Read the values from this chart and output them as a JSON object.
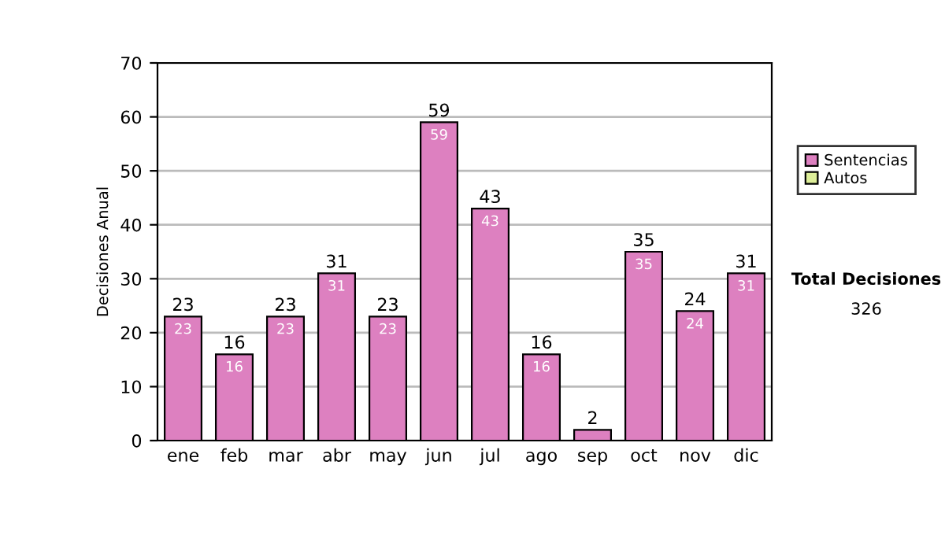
{
  "chart_data": {
    "type": "bar",
    "stacked": true,
    "ylabel": "Decisiones Anual",
    "categories": [
      "ene",
      "feb",
      "mar",
      "abr",
      "may",
      "jun",
      "jul",
      "ago",
      "sep",
      "oct",
      "nov",
      "dic"
    ],
    "series": [
      {
        "name": "Sentencias",
        "color": "#dd80c0",
        "values": [
          23,
          16,
          23,
          31,
          23,
          59,
          43,
          16,
          2,
          35,
          24,
          31
        ],
        "value_labels": [
          "23",
          "16",
          "23",
          "31",
          "23",
          "59",
          "43",
          "16",
          null,
          "35",
          "24",
          "31"
        ]
      },
      {
        "name": "Autos",
        "color": "#ddee99",
        "values": [
          null,
          null,
          null,
          null,
          null,
          null,
          null,
          null,
          null,
          null,
          null,
          null
        ]
      }
    ],
    "totals": [
      "23",
      "16",
      "23",
      "31",
      "23",
      "59",
      "43",
      "16",
      "2",
      "35",
      "24",
      "31"
    ],
    "ylim": [
      0,
      70
    ],
    "yticks": [
      0,
      10,
      20,
      30,
      40,
      50,
      60,
      70
    ],
    "grid": "y",
    "legend": "right",
    "annotations": [
      "Total Decisiones",
      "326"
    ]
  }
}
